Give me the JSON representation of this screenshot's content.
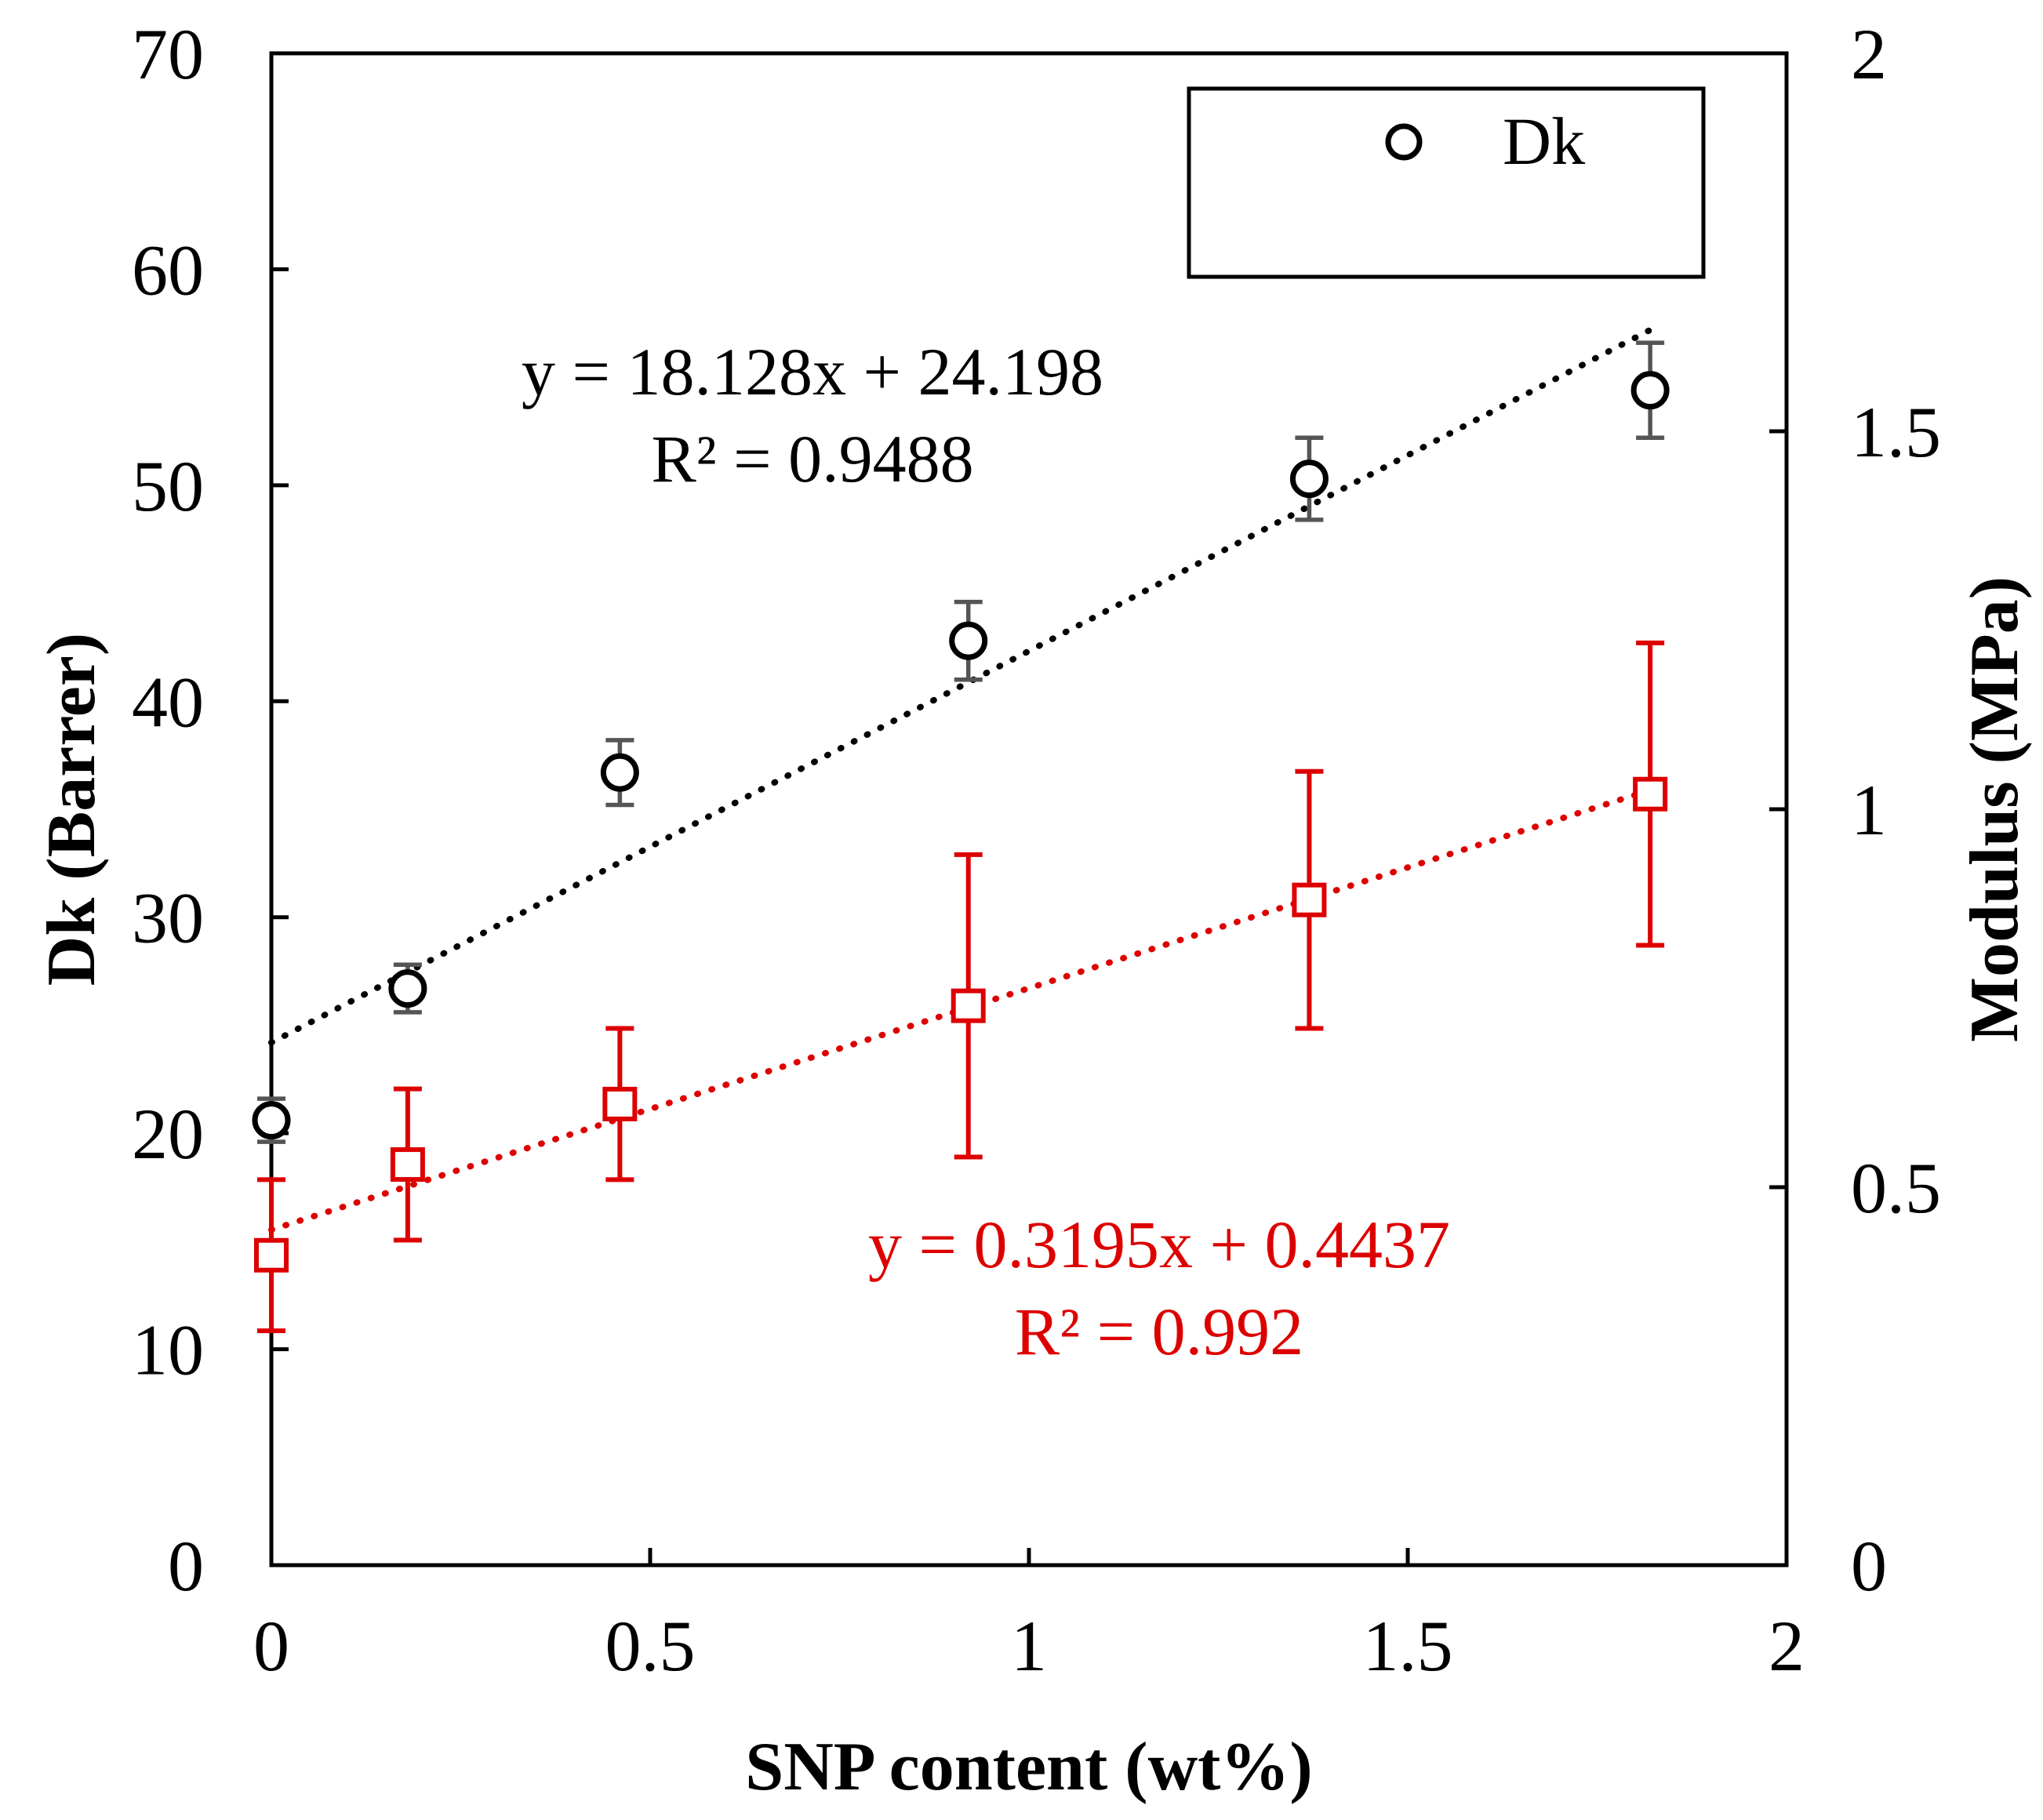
{
  "chart_data": {
    "type": "scatter",
    "xlabel": "SNP content (wt%)",
    "ylabel_left": "Dk (Barrer)",
    "ylabel_right": "Modulus (MPa)",
    "xlim": [
      0,
      2
    ],
    "ylim_left": [
      0,
      70
    ],
    "ylim_right": [
      0,
      2
    ],
    "x_ticks": [
      "0",
      "0.5",
      "1",
      "1.5",
      "2"
    ],
    "y_left_ticks": [
      "0",
      "10",
      "20",
      "30",
      "40",
      "50",
      "60",
      "70"
    ],
    "y_right_ticks": [
      "0",
      "0.5",
      "1",
      "1.5",
      "2"
    ],
    "grid": false,
    "legend": {
      "position": "top-right",
      "entries": [
        "Dk"
      ]
    },
    "series": [
      {
        "name": "Dk",
        "axis": "left",
        "marker": "circle",
        "color": "#000000",
        "error_color": "#555555",
        "x": [
          0,
          0.18,
          0.46,
          0.92,
          1.37,
          1.82
        ],
        "y": [
          20.6,
          26.7,
          36.7,
          42.8,
          50.3,
          54.4
        ],
        "err": [
          1.0,
          1.1,
          1.5,
          1.8,
          1.9,
          2.2
        ],
        "trendline": {
          "slope": 18.128,
          "intercept": 24.198,
          "x_range": [
            0,
            1.82
          ]
        },
        "equation": "y = 18.128x + 24.198",
        "r2": "R² = 0.9488"
      },
      {
        "name": "Modulus",
        "axis": "right",
        "marker": "square",
        "color": "#dd0000",
        "error_color": "#dd0000",
        "x": [
          0,
          0.18,
          0.46,
          0.92,
          1.37,
          1.82
        ],
        "y": [
          0.41,
          0.53,
          0.61,
          0.74,
          0.88,
          1.02
        ],
        "err": [
          0.1,
          0.1,
          0.1,
          0.2,
          0.17,
          0.2
        ],
        "trendline": {
          "slope": 0.3195,
          "intercept": 0.4437,
          "x_range": [
            0,
            1.82
          ]
        },
        "equation": "y = 0.3195x + 0.4437",
        "r2": "R² = 0.992"
      }
    ]
  }
}
